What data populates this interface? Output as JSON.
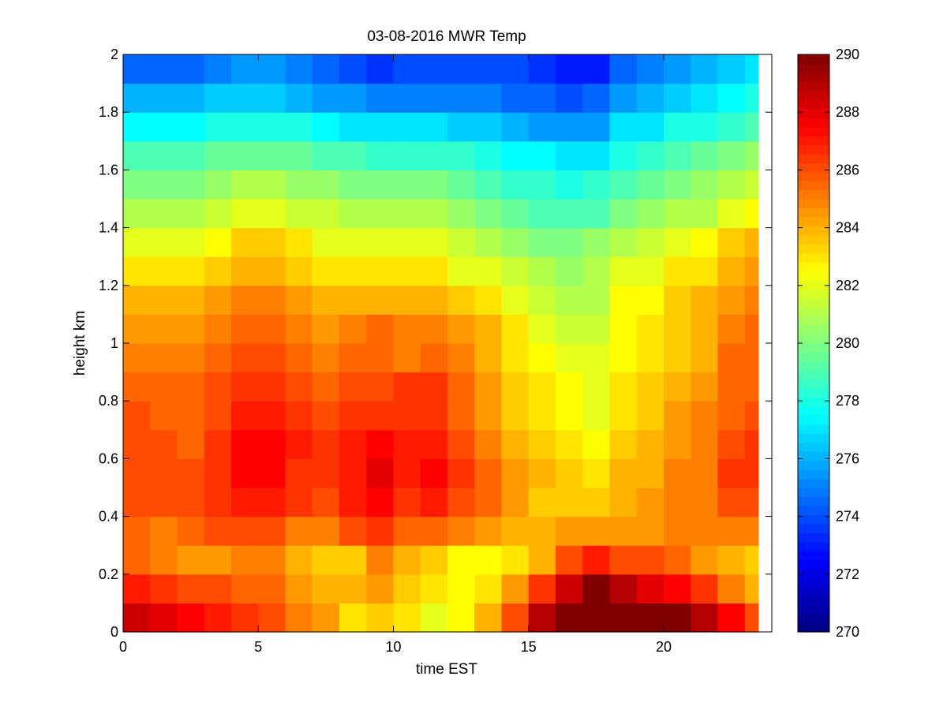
{
  "chart_data": {
    "type": "heatmap",
    "title": "03-08-2016 MWR Temp",
    "xlabel": "time EST",
    "ylabel": "height km",
    "xlim": [
      0,
      24
    ],
    "ylim": [
      0,
      2
    ],
    "x_ticks": [
      "0",
      "5",
      "10",
      "15",
      "20"
    ],
    "y_ticks": [
      "0",
      "0.2",
      "0.4",
      "0.6",
      "0.8",
      "1",
      "1.2",
      "1.4",
      "1.6",
      "1.8",
      "2"
    ],
    "grid": false,
    "x": [
      0,
      1,
      2,
      3,
      4,
      5,
      6,
      7,
      8,
      9,
      10,
      11,
      12,
      13,
      14,
      15,
      16,
      17,
      18,
      19,
      20,
      21,
      22,
      23
    ],
    "y": [
      0,
      0.1,
      0.2,
      0.3,
      0.4,
      0.5,
      0.6,
      0.7,
      0.8,
      0.9,
      1.0,
      1.1,
      1.2,
      1.3,
      1.4,
      1.5,
      1.6,
      1.7,
      1.8,
      1.9,
      2.0
    ],
    "z": [
      [
        288.5,
        288.0,
        287.5,
        287.0,
        286.5,
        286.0,
        285.0,
        284.5,
        283.0,
        283.5,
        283.0,
        282.0,
        282.5,
        284.0,
        286.0,
        289.0,
        290.0,
        290.0,
        290.0,
        290.0,
        290.0,
        289.0,
        287.5,
        286.0
      ],
      [
        287.0,
        286.5,
        286.0,
        286.0,
        285.5,
        285.5,
        284.5,
        284.0,
        284.0,
        284.5,
        283.5,
        283.0,
        282.5,
        283.0,
        284.5,
        286.5,
        288.5,
        290.0,
        289.0,
        288.0,
        287.5,
        286.5,
        285.0,
        284.0
      ],
      [
        285.5,
        285.0,
        284.5,
        284.5,
        285.0,
        285.0,
        284.0,
        283.5,
        283.5,
        285.0,
        284.0,
        283.5,
        282.5,
        282.5,
        283.0,
        284.0,
        286.0,
        287.0,
        286.0,
        286.0,
        285.5,
        284.5,
        284.0,
        283.5
      ],
      [
        285.5,
        285.0,
        285.5,
        286.0,
        286.0,
        286.0,
        285.0,
        285.0,
        286.0,
        286.5,
        285.5,
        285.5,
        285.0,
        284.5,
        284.0,
        284.0,
        284.5,
        284.5,
        284.5,
        284.5,
        285.0,
        285.0,
        285.0,
        285.0
      ],
      [
        286.0,
        286.0,
        286.0,
        286.5,
        287.0,
        287.0,
        286.5,
        286.0,
        287.0,
        287.5,
        286.5,
        287.0,
        286.0,
        285.5,
        284.5,
        283.5,
        283.5,
        283.5,
        284.0,
        284.5,
        285.0,
        285.0,
        286.0,
        286.0
      ],
      [
        286.0,
        286.0,
        286.0,
        286.5,
        287.5,
        287.5,
        286.5,
        286.5,
        287.0,
        288.0,
        287.0,
        287.5,
        286.5,
        285.5,
        284.5,
        284.0,
        283.5,
        283.0,
        284.0,
        284.0,
        285.0,
        285.0,
        286.5,
        286.5
      ],
      [
        286.0,
        286.0,
        285.5,
        286.5,
        287.5,
        287.5,
        287.0,
        286.5,
        287.0,
        287.5,
        287.0,
        287.0,
        286.0,
        285.0,
        284.0,
        283.5,
        283.0,
        282.5,
        283.5,
        284.0,
        284.5,
        285.0,
        286.0,
        286.5
      ],
      [
        286.0,
        285.5,
        285.5,
        286.0,
        287.0,
        287.0,
        286.5,
        286.0,
        286.5,
        286.5,
        286.5,
        286.5,
        285.5,
        284.5,
        283.5,
        283.0,
        282.5,
        282.0,
        283.0,
        283.5,
        284.5,
        285.0,
        285.5,
        286.0
      ],
      [
        285.5,
        285.5,
        285.5,
        286.0,
        286.5,
        286.5,
        286.0,
        285.5,
        286.0,
        286.0,
        286.5,
        286.5,
        285.5,
        284.5,
        283.5,
        283.0,
        282.5,
        282.0,
        283.0,
        283.5,
        284.0,
        284.5,
        285.5,
        285.5
      ],
      [
        285.0,
        285.0,
        285.0,
        285.5,
        286.0,
        286.0,
        285.5,
        285.0,
        285.5,
        285.5,
        285.0,
        285.5,
        285.0,
        284.0,
        283.0,
        282.5,
        282.0,
        282.0,
        282.5,
        283.0,
        283.5,
        284.0,
        285.5,
        285.5
      ],
      [
        284.5,
        284.5,
        284.5,
        285.0,
        285.5,
        285.5,
        285.0,
        284.5,
        285.0,
        285.5,
        285.0,
        285.0,
        284.5,
        284.0,
        283.0,
        282.0,
        281.5,
        281.5,
        282.5,
        283.0,
        283.5,
        284.0,
        285.0,
        285.5
      ],
      [
        284.0,
        284.0,
        284.0,
        284.5,
        285.0,
        285.0,
        284.5,
        284.0,
        284.0,
        284.0,
        284.0,
        284.0,
        283.5,
        283.0,
        282.0,
        281.5,
        281.0,
        281.0,
        282.5,
        282.5,
        283.5,
        284.0,
        284.5,
        285.0
      ],
      [
        283.0,
        283.0,
        283.0,
        283.5,
        284.0,
        284.0,
        283.5,
        283.0,
        283.0,
        283.0,
        283.0,
        283.0,
        282.0,
        282.0,
        281.5,
        281.0,
        280.5,
        281.0,
        282.0,
        282.0,
        283.0,
        283.0,
        284.0,
        284.5
      ],
      [
        282.0,
        282.0,
        282.0,
        282.5,
        283.5,
        283.5,
        283.0,
        282.0,
        282.0,
        282.0,
        282.0,
        282.0,
        281.5,
        281.0,
        280.5,
        280.0,
        280.0,
        280.5,
        281.0,
        281.5,
        282.0,
        282.5,
        283.5,
        284.0
      ],
      [
        281.0,
        281.0,
        281.0,
        281.5,
        282.0,
        282.0,
        281.5,
        281.5,
        281.0,
        281.0,
        281.0,
        281.0,
        280.5,
        280.0,
        279.5,
        279.0,
        279.0,
        279.0,
        280.0,
        280.5,
        281.0,
        281.0,
        282.0,
        282.5
      ],
      [
        280.0,
        280.0,
        280.0,
        280.5,
        281.0,
        281.0,
        280.5,
        280.5,
        280.0,
        280.0,
        280.0,
        280.0,
        279.5,
        279.0,
        278.5,
        278.5,
        278.0,
        278.5,
        279.0,
        279.5,
        280.0,
        280.5,
        281.0,
        281.5
      ],
      [
        279.0,
        279.0,
        279.0,
        279.5,
        279.5,
        279.5,
        279.5,
        279.0,
        279.0,
        278.5,
        278.5,
        278.5,
        278.5,
        278.0,
        277.5,
        277.5,
        277.0,
        277.0,
        278.0,
        278.5,
        279.0,
        279.5,
        280.0,
        280.5
      ],
      [
        277.5,
        277.5,
        277.5,
        278.0,
        278.0,
        278.0,
        278.0,
        277.5,
        277.0,
        277.0,
        277.0,
        277.0,
        276.5,
        276.5,
        276.0,
        275.5,
        275.5,
        275.5,
        277.0,
        277.0,
        278.0,
        278.0,
        278.5,
        279.0
      ],
      [
        276.0,
        276.0,
        276.0,
        276.5,
        276.5,
        276.5,
        276.0,
        275.5,
        275.5,
        275.0,
        275.0,
        275.0,
        275.0,
        275.0,
        274.5,
        274.5,
        274.0,
        274.5,
        275.5,
        276.0,
        276.5,
        277.0,
        277.5,
        278.0
      ],
      [
        274.5,
        274.5,
        274.5,
        275.0,
        275.5,
        275.5,
        275.0,
        274.5,
        274.0,
        273.5,
        274.0,
        274.0,
        274.0,
        274.0,
        274.0,
        273.5,
        273.0,
        273.0,
        274.5,
        275.0,
        275.5,
        276.0,
        276.5,
        277.0
      ],
      [
        273.5,
        273.5,
        273.5,
        274.0,
        274.5,
        274.5,
        274.0,
        273.5,
        273.0,
        272.5,
        273.0,
        273.5,
        273.5,
        273.5,
        273.5,
        272.5,
        272.0,
        272.5,
        273.5,
        274.0,
        274.5,
        275.0,
        275.5,
        276.0
      ]
    ],
    "colorbar": {
      "min": 270,
      "max": 290,
      "colormap": "jet",
      "ticks": [
        "270",
        "272",
        "274",
        "276",
        "278",
        "280",
        "282",
        "284",
        "286",
        "288",
        "290"
      ]
    }
  }
}
